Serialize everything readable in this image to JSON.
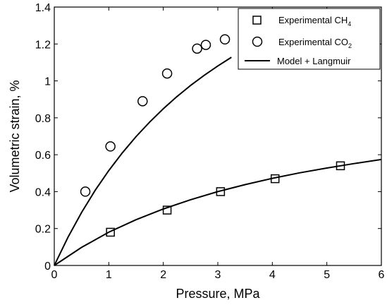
{
  "chart_data": {
    "type": "scatter",
    "title": "",
    "xlabel": "Pressure, MPa",
    "ylabel": "Volumetric strain, %",
    "xlim": [
      0,
      6
    ],
    "ylim": [
      0,
      1.4
    ],
    "xticks": [
      "0",
      "1",
      "2",
      "3",
      "4",
      "5",
      "6"
    ],
    "yticks": [
      "0",
      "0.2",
      "0.4",
      "0.6",
      "0.8",
      "1",
      "1.2",
      "1.4"
    ],
    "grid": false,
    "legend_position": "top-right",
    "series": [
      {
        "name": "Experimental CH",
        "subscript": "4",
        "marker": "square",
        "x": [
          1.03,
          2.07,
          3.05,
          4.05,
          5.25
        ],
        "y": [
          0.18,
          0.3,
          0.4,
          0.47,
          0.54
        ]
      },
      {
        "name": "Experimental CO",
        "subscript": "2",
        "marker": "circle",
        "x": [
          0.57,
          1.03,
          1.62,
          2.07,
          2.62,
          2.78,
          3.13
        ],
        "y": [
          0.4,
          0.645,
          0.89,
          1.04,
          1.175,
          1.195,
          1.225
        ]
      },
      {
        "name": "Model + Langmuir",
        "marker": "line",
        "curves": [
          {
            "x": [
              0,
              0.25,
              0.5,
              0.75,
              1,
              1.25,
              1.5,
              1.75,
              2,
              2.25,
              2.5,
              2.75,
              3,
              3.25
            ],
            "y": [
              0,
              0.152,
              0.287,
              0.407,
              0.514,
              0.611,
              0.698,
              0.777,
              0.849,
              0.915,
              0.975,
              1.03,
              1.081,
              1.128
            ]
          },
          {
            "x": [
              0,
              0.5,
              1,
              1.5,
              2,
              2.5,
              3,
              3.5,
              4,
              4.5,
              5,
              5.5,
              6
            ],
            "y": [
              0,
              0.098,
              0.18,
              0.248,
              0.306,
              0.356,
              0.4,
              0.438,
              0.472,
              0.502,
              0.528,
              0.552,
              0.574
            ]
          }
        ]
      }
    ]
  }
}
